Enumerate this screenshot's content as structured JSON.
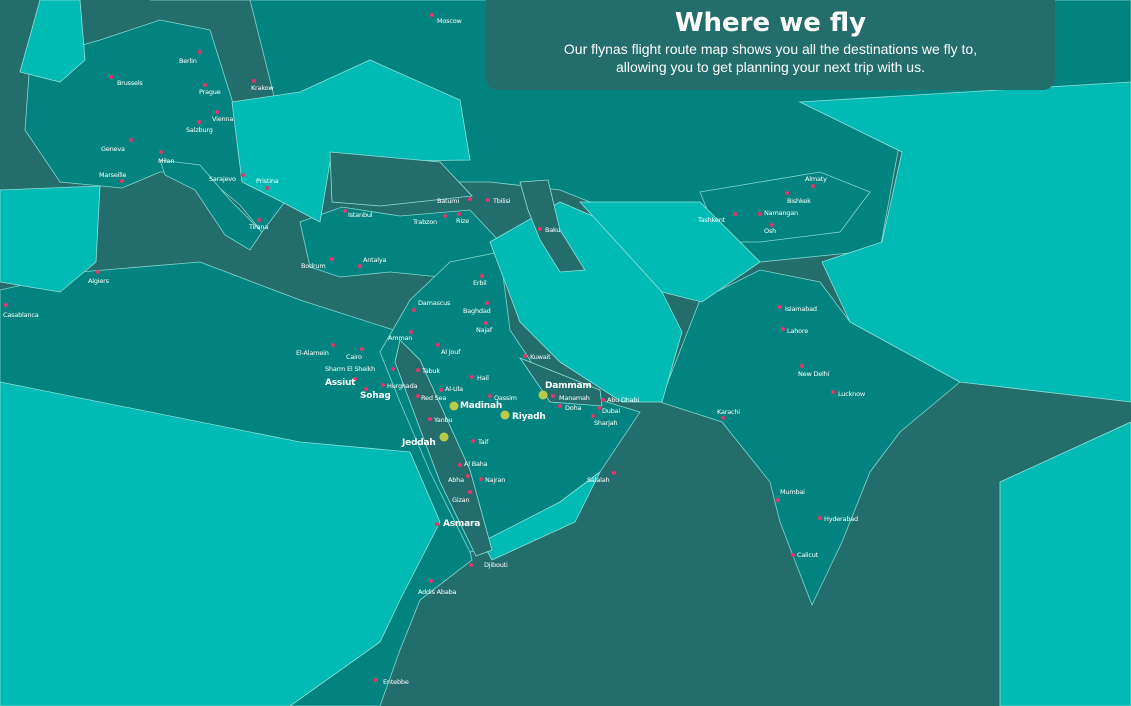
{
  "banner": {
    "title": "Where we fly",
    "subtitle_line1": "Our flynas flight route map shows you all the destinations we fly to,",
    "subtitle_line2": "allowing you to get planning your next trip with us."
  },
  "colors": {
    "sea": "#236e6c",
    "served_country": "#03837f",
    "other_land": "#00bab4",
    "destination_dot": "#e8336d",
    "hub_dot": "#b9cc4a"
  },
  "cities": [
    {
      "name": "Moscow"
    },
    {
      "name": "Berlin"
    },
    {
      "name": "Brussels"
    },
    {
      "name": "Prague"
    },
    {
      "name": "Krakow"
    },
    {
      "name": "Vienna"
    },
    {
      "name": "Salzburg"
    },
    {
      "name": "Geneva"
    },
    {
      "name": "Milan"
    },
    {
      "name": "Marseille"
    },
    {
      "name": "Sarajevo"
    },
    {
      "name": "Pristina"
    },
    {
      "name": "Tirana"
    },
    {
      "name": "Istanbul"
    },
    {
      "name": "Batumi"
    },
    {
      "name": "Trabzon"
    },
    {
      "name": "Rize"
    },
    {
      "name": "Tbilisi"
    },
    {
      "name": "Baku"
    },
    {
      "name": "Bodrum"
    },
    {
      "name": "Antalya"
    },
    {
      "name": "Algiers"
    },
    {
      "name": "Casablanca"
    },
    {
      "name": "Erbil"
    },
    {
      "name": "Damascus"
    },
    {
      "name": "Baghdad"
    },
    {
      "name": "Najaf"
    },
    {
      "name": "Amman"
    },
    {
      "name": "Al Jouf"
    },
    {
      "name": "El-Alamein"
    },
    {
      "name": "Cairo"
    },
    {
      "name": "Kuwait"
    },
    {
      "name": "Sharm El Sheikh"
    },
    {
      "name": "Tabuk"
    },
    {
      "name": "Hail"
    },
    {
      "name": "Assiut",
      "hub_label": true
    },
    {
      "name": "Hurghada"
    },
    {
      "name": "Al-Ula"
    },
    {
      "name": "Sohag",
      "hub_label": true
    },
    {
      "name": "Red Sea"
    },
    {
      "name": "Qassim"
    },
    {
      "name": "Dammam",
      "hub": true
    },
    {
      "name": "Manamah"
    },
    {
      "name": "Madinah",
      "hub": true
    },
    {
      "name": "Doha"
    },
    {
      "name": "Abu Dhabi"
    },
    {
      "name": "Dubai"
    },
    {
      "name": "Sharjah"
    },
    {
      "name": "Riyadh",
      "hub": true
    },
    {
      "name": "Yanbu"
    },
    {
      "name": "Jeddah",
      "hub": true
    },
    {
      "name": "Taif"
    },
    {
      "name": "Al Baha"
    },
    {
      "name": "Abha"
    },
    {
      "name": "Najran"
    },
    {
      "name": "Salalah"
    },
    {
      "name": "Gizan"
    },
    {
      "name": "Asmara",
      "hub_label": true
    },
    {
      "name": "Djibouti"
    },
    {
      "name": "Addis Ababa"
    },
    {
      "name": "Entebbe"
    },
    {
      "name": "Almaty"
    },
    {
      "name": "Bishkek"
    },
    {
      "name": "Tashkent"
    },
    {
      "name": "Namangan"
    },
    {
      "name": "Osh"
    },
    {
      "name": "Islamabad"
    },
    {
      "name": "Lahore"
    },
    {
      "name": "New Delhi"
    },
    {
      "name": "Lucknow"
    },
    {
      "name": "Karachi"
    },
    {
      "name": "Mumbai"
    },
    {
      "name": "Hyderabad"
    },
    {
      "name": "Calicut"
    }
  ]
}
